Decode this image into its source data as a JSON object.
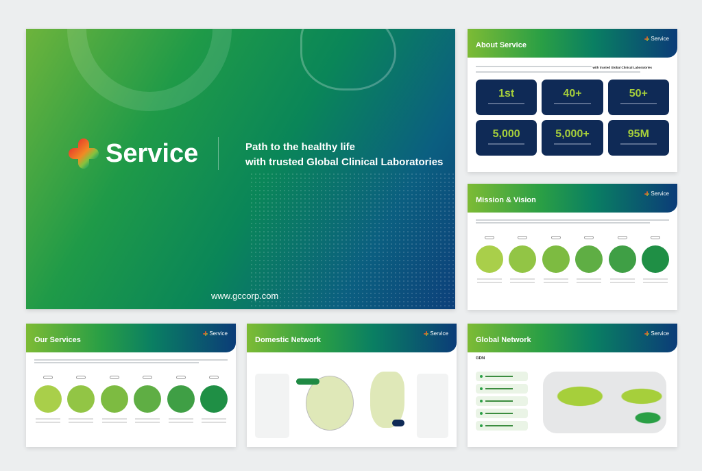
{
  "cover": {
    "brand": "Service",
    "tagline_line1": "Path to the healthy life",
    "tagline_line2": "with trusted Global Clinical Laboratories",
    "url": "www.gccorp.com"
  },
  "brand_small": "Service",
  "about": {
    "title": "About Service",
    "intro_bold": "with trusted Global Clinical Laboratories",
    "stats": [
      {
        "value": "1st"
      },
      {
        "value": "40+"
      },
      {
        "value": "50+"
      },
      {
        "value": "5,000"
      },
      {
        "value": "5,000+"
      },
      {
        "value": "95M"
      }
    ]
  },
  "mission": {
    "title": "Mission & Vision"
  },
  "services": {
    "title": "Our Services"
  },
  "domestic": {
    "title": "Domestic Network"
  },
  "global": {
    "title": "Global Network",
    "badge": "GDN"
  },
  "colors": {
    "green": "#2a9f45",
    "lime": "#a6cf3b",
    "navy": "#0f2a56",
    "blue": "#0b3c78"
  }
}
